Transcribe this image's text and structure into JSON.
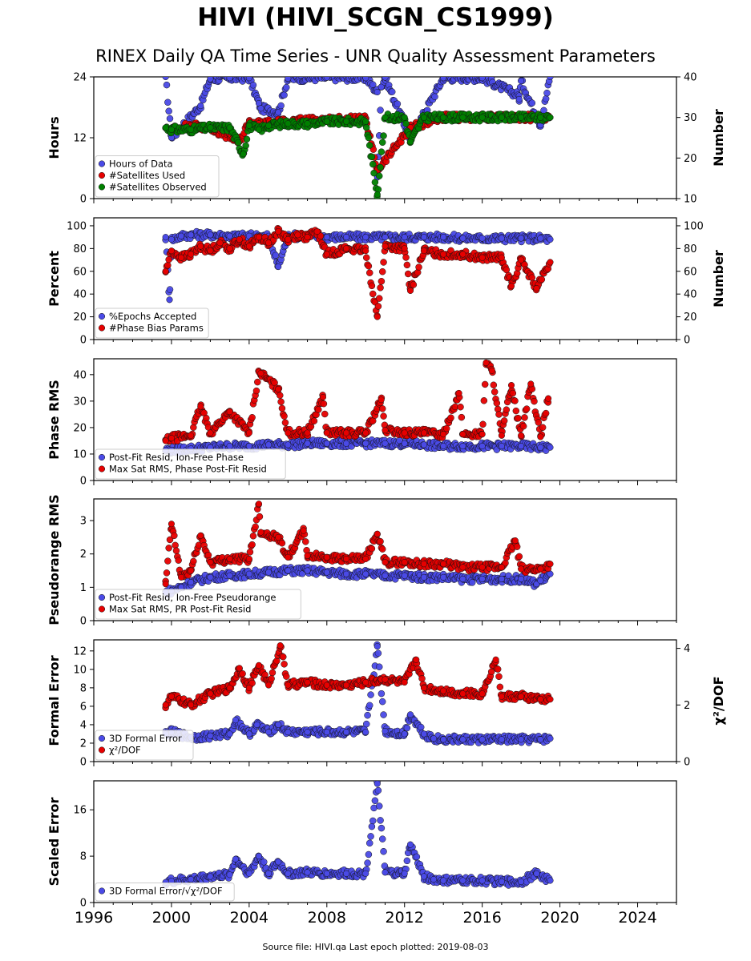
{
  "title": "HIVI (HIVI_SCGN_CS1999)",
  "subtitle": "RINEX Daily QA Time Series - UNR Quality Assessment Parameters",
  "footer": "Source file: HIVI.qa Last epoch plotted: 2019-08-03",
  "chart_data": [
    {
      "type": "scatter",
      "panel": "hours-satellites",
      "ylabel": "Hours",
      "ylim": [
        0,
        24
      ],
      "yticks": [
        0,
        12,
        24
      ],
      "y2label": "Number",
      "y2lim": [
        10,
        40
      ],
      "y2ticks": [
        10,
        20,
        30,
        40
      ],
      "legend_position": "lower-left",
      "series": [
        {
          "name": "Hours of Data",
          "color": "#4a4ae6",
          "axis": "left",
          "x": [
            1999.7,
            2000.0,
            2001.5,
            2002.0,
            2003.0,
            2004.0,
            2004.5,
            2004.6,
            2005.5,
            2006.0,
            2008.0,
            2010.0,
            2010.6,
            2010.6,
            2010.8,
            2011.0,
            2012.3,
            2014.0,
            2016.0,
            2017.9,
            2017.9,
            2018.0,
            2019.0,
            2019.5
          ],
          "y": [
            24.0,
            12.0,
            18.3,
            23.6,
            23.8,
            23.8,
            18.8,
            17.8,
            17.0,
            23.7,
            23.9,
            23.8,
            21.0,
            4.2,
            22.0,
            23.9,
            11.8,
            23.8,
            23.8,
            20.3,
            19.6,
            23.2,
            14.5,
            24.0
          ]
        },
        {
          "name": "#Satellites Used",
          "color": "#e60000",
          "axis": "right",
          "x": [
            2000.0,
            2001.0,
            2002.0,
            2003.5,
            2004.0,
            2004.5,
            2006.0,
            2008.0,
            2010.0,
            2010.6,
            2012.3,
            2014.0,
            2016.0,
            2018.0,
            2019.5
          ],
          "y": [
            27.0,
            28.0,
            27.5,
            24.0,
            29.0,
            28.5,
            29.0,
            29.5,
            29.5,
            17.0,
            27.5,
            30.0,
            30.0,
            30.0,
            30.0
          ]
        },
        {
          "name": "#Satellites Observed",
          "color": "#008000",
          "axis": "right",
          "x": [
            1999.7,
            2000.0,
            2001.0,
            2002.0,
            2003.0,
            2003.7,
            2004.0,
            2004.5,
            2005.0,
            2006.0,
            2007.0,
            2008.0,
            2009.0,
            2010.0,
            2010.6,
            2011.0,
            2012.0,
            2012.3,
            2013.0,
            2014.0,
            2015.0,
            2016.0,
            2017.0,
            2018.0,
            2019.0,
            2019.5
          ],
          "y": [
            27.5,
            27.0,
            27.0,
            27.5,
            27.5,
            21.0,
            28.0,
            27.0,
            28.0,
            28.5,
            28.5,
            29.0,
            29.0,
            29.0,
            11.0,
            30.0,
            30.0,
            24.0,
            30.0,
            30.0,
            30.0,
            30.0,
            30.0,
            30.0,
            30.0,
            30.0
          ]
        }
      ]
    },
    {
      "type": "scatter",
      "panel": "percent-phase-bias",
      "ylabel": "Percent",
      "ylim": [
        0,
        107
      ],
      "yticks": [
        0,
        20,
        40,
        60,
        80,
        100
      ],
      "y2label": "Number",
      "y2lim": [
        0,
        107
      ],
      "y2ticks": [
        0,
        20,
        40,
        60,
        80,
        100
      ],
      "legend_position": "lower-left",
      "series": [
        {
          "name": "%Epochs Accepted",
          "color": "#4a4ae6",
          "axis": "left",
          "x": [
            1999.7,
            1999.9,
            2000.0,
            2000.5,
            2001.0,
            2002.0,
            2003.0,
            2004.0,
            2005.0,
            2005.5,
            2006.0,
            2007.0,
            2008.0,
            2009.0,
            2010.0,
            2011.0,
            2012.0,
            2013.0,
            2014.0,
            2015.0,
            2016.0,
            2017.0,
            2018.0,
            2019.0,
            2019.5
          ],
          "y": [
            90,
            35,
            88,
            91,
            92,
            92,
            91,
            91,
            91,
            64,
            91,
            91,
            90,
            90,
            90,
            90,
            90,
            90,
            90,
            89,
            89,
            89,
            89,
            89,
            88
          ]
        },
        {
          "name": "#Phase Bias Params",
          "color": "#e60000",
          "axis": "right",
          "x": [
            1999.7,
            2000.0,
            2000.5,
            2001.0,
            2001.5,
            2002.0,
            2002.5,
            2003.0,
            2003.5,
            2004.0,
            2004.5,
            2005.0,
            2005.5,
            2006.0,
            2006.5,
            2007.0,
            2007.5,
            2008.0,
            2009.0,
            2010.0,
            2010.6,
            2011.0,
            2012.0,
            2012.3,
            2013.0,
            2014.0,
            2015.0,
            2016.0,
            2017.0,
            2017.5,
            2018.0,
            2018.8,
            2019.5
          ],
          "y": [
            60,
            78,
            72,
            75,
            82,
            78,
            85,
            80,
            88,
            82,
            90,
            85,
            95,
            88,
            92,
            90,
            95,
            75,
            80,
            78,
            20,
            82,
            80,
            43,
            78,
            75,
            75,
            72,
            72,
            47,
            70,
            45,
            68
          ]
        }
      ]
    },
    {
      "type": "scatter",
      "panel": "phase-rms",
      "ylabel": "Phase RMS",
      "ylim": [
        0,
        46
      ],
      "yticks": [
        0,
        10,
        20,
        30,
        40
      ],
      "legend_position": "lower-left",
      "series": [
        {
          "name": "Post-Fit Resid, Ion-Free Phase",
          "color": "#4a4ae6",
          "x": [
            1999.7,
            2000.0,
            2001.0,
            2002.0,
            2003.0,
            2004.0,
            2005.0,
            2006.0,
            2007.0,
            2008.0,
            2009.0,
            2010.0,
            2011.0,
            2012.0,
            2013.0,
            2014.0,
            2015.0,
            2016.0,
            2017.0,
            2018.0,
            2019.0,
            2019.5
          ],
          "y": [
            11.5,
            11.5,
            12.0,
            12.5,
            13.0,
            13.0,
            13.5,
            13.5,
            14.0,
            14.0,
            14.0,
            14.0,
            14.0,
            14.0,
            13.5,
            13.0,
            13.0,
            13.0,
            13.0,
            13.0,
            12.5,
            12.5
          ]
        },
        {
          "name": "Max Sat RMS, Phase Post-Fit Resid",
          "color": "#e60000",
          "x": [
            1999.7,
            2000.0,
            2001.0,
            2001.5,
            2002.0,
            2003.0,
            2004.0,
            2004.5,
            2004.6,
            2005.5,
            2006.0,
            2007.0,
            2007.8,
            2008.0,
            2009.0,
            2010.0,
            2010.8,
            2011.0,
            2012.0,
            2013.0,
            2014.0,
            2014.8,
            2015.0,
            2016.0,
            2016.2,
            2016.5,
            2017.0,
            2017.5,
            2018.0,
            2018.5,
            2019.0,
            2019.4
          ],
          "y": [
            15.0,
            16.0,
            17.0,
            28.0,
            18.0,
            26.0,
            18.0,
            41.0,
            40.5,
            34.5,
            18.0,
            18.0,
            31.5,
            18.0,
            18.0,
            18.0,
            30.5,
            19.0,
            18.0,
            18.0,
            17.5,
            33.0,
            17.5,
            17.5,
            44.5,
            41.5,
            17.0,
            36.0,
            17.0,
            36.5,
            16.5,
            31.0
          ]
        }
      ]
    },
    {
      "type": "scatter",
      "panel": "pseudorange-rms",
      "ylabel": "Pseudorange RMS",
      "ylim": [
        0,
        3.65
      ],
      "yticks": [
        0,
        1,
        2,
        3
      ],
      "legend_position": "lower-left",
      "series": [
        {
          "name": "Post-Fit Resid, Ion-Free Pseudorange",
          "color": "#4a4ae6",
          "x": [
            1999.7,
            2000.0,
            2000.5,
            2001.0,
            2002.0,
            2003.0,
            2004.0,
            2005.0,
            2006.0,
            2007.0,
            2008.0,
            2009.0,
            2010.0,
            2011.0,
            2012.0,
            2013.0,
            2014.0,
            2015.0,
            2016.0,
            2017.0,
            2018.0,
            2018.8,
            2019.0,
            2019.5
          ],
          "y": [
            0.85,
            0.9,
            1.0,
            1.15,
            1.3,
            1.35,
            1.4,
            1.45,
            1.5,
            1.5,
            1.45,
            1.4,
            1.4,
            1.35,
            1.35,
            1.3,
            1.3,
            1.25,
            1.25,
            1.25,
            1.25,
            1.1,
            1.2,
            1.4
          ]
        },
        {
          "name": "Max Sat RMS, PR Post-Fit Resid",
          "color": "#e60000",
          "x": [
            1999.7,
            2000.0,
            2000.5,
            2001.0,
            2001.5,
            2002.0,
            2003.0,
            2004.0,
            2004.5,
            2004.6,
            2005.5,
            2006.0,
            2006.8,
            2007.0,
            2008.0,
            2009.0,
            2010.0,
            2010.6,
            2011.0,
            2012.0,
            2013.0,
            2014.0,
            2015.0,
            2016.0,
            2017.0,
            2017.7,
            2018.0,
            2019.0,
            2019.5
          ],
          "y": [
            1.1,
            2.9,
            1.3,
            1.5,
            2.55,
            1.75,
            1.85,
            1.85,
            3.5,
            2.65,
            2.5,
            1.9,
            2.7,
            1.95,
            1.9,
            1.85,
            1.85,
            2.6,
            1.75,
            1.75,
            1.7,
            1.7,
            1.6,
            1.6,
            1.6,
            2.4,
            1.55,
            1.55,
            1.7
          ]
        }
      ]
    },
    {
      "type": "scatter",
      "panel": "formal-error",
      "ylabel": "Formal Error",
      "ylim": [
        0,
        13.2
      ],
      "yticks": [
        0,
        2,
        4,
        6,
        8,
        10,
        12
      ],
      "y2label": "χ²/DOF",
      "y2lim": [
        0,
        4.3
      ],
      "y2ticks": [
        0,
        2,
        4
      ],
      "legend_position": "lower-left",
      "series": [
        {
          "name": "3D Formal Error",
          "color": "#4a4ae6",
          "axis": "left",
          "x": [
            1999.7,
            2000.0,
            2001.0,
            2002.0,
            2003.0,
            2003.3,
            2004.0,
            2004.4,
            2005.0,
            2005.5,
            2006.0,
            2007.0,
            2008.0,
            2009.0,
            2010.0,
            2010.6,
            2011.0,
            2012.0,
            2012.3,
            2013.0,
            2013.5,
            2014.0,
            2015.0,
            2016.0,
            2017.0,
            2018.0,
            2019.0,
            2019.5
          ],
          "y": [
            3.0,
            3.2,
            2.6,
            2.8,
            3.0,
            4.5,
            3.0,
            4.0,
            3.2,
            4.0,
            3.2,
            3.2,
            3.2,
            3.2,
            3.2,
            12.5,
            3.3,
            3.0,
            5.1,
            3.0,
            2.5,
            2.4,
            2.4,
            2.4,
            2.4,
            2.4,
            2.4,
            2.5
          ]
        },
        {
          "name": "χ²/DOF",
          "color": "#e60000",
          "axis": "right",
          "x": [
            1999.7,
            2000.0,
            2001.0,
            2002.0,
            2003.0,
            2003.5,
            2004.0,
            2004.5,
            2005.0,
            2005.6,
            2006.0,
            2007.0,
            2008.0,
            2009.0,
            2010.0,
            2010.8,
            2011.0,
            2012.0,
            2012.6,
            2013.0,
            2014.0,
            2015.0,
            2016.0,
            2016.7,
            2017.0,
            2018.0,
            2019.0,
            2019.5
          ],
          "y": [
            2.0,
            2.3,
            2.0,
            2.4,
            2.6,
            3.3,
            2.6,
            3.4,
            2.7,
            4.1,
            2.7,
            2.8,
            2.7,
            2.7,
            2.8,
            2.9,
            2.9,
            2.8,
            3.6,
            2.6,
            2.5,
            2.4,
            2.4,
            3.6,
            2.3,
            2.3,
            2.2,
            2.2
          ]
        }
      ]
    },
    {
      "type": "scatter",
      "panel": "scaled-error",
      "ylabel": "Scaled Error",
      "ylim": [
        0,
        21
      ],
      "yticks": [
        0,
        8,
        16
      ],
      "xlim": [
        1996,
        2026
      ],
      "xticks": [
        1996,
        2000,
        2004,
        2008,
        2012,
        2016,
        2020,
        2024
      ],
      "legend_position": "lower-left",
      "series": [
        {
          "name": "3D Formal Error/√χ²/DOF",
          "color": "#4a4ae6",
          "x": [
            1999.7,
            2000.0,
            2001.0,
            2002.0,
            2003.0,
            2003.3,
            2004.0,
            2004.5,
            2005.0,
            2005.5,
            2006.0,
            2007.0,
            2008.0,
            2009.0,
            2010.0,
            2010.6,
            2011.0,
            2012.0,
            2012.3,
            2013.0,
            2013.5,
            2014.0,
            2015.0,
            2016.0,
            2017.0,
            2018.0,
            2018.8,
            2019.5
          ],
          "y": [
            3.5,
            3.7,
            4.0,
            4.5,
            4.8,
            7.5,
            5.0,
            8.0,
            5.0,
            7.0,
            5.0,
            5.2,
            5.0,
            5.0,
            5.0,
            20.5,
            5.2,
            5.0,
            10.0,
            4.5,
            4.0,
            3.8,
            3.8,
            3.8,
            3.6,
            3.6,
            5.0,
            3.8
          ]
        }
      ]
    }
  ]
}
